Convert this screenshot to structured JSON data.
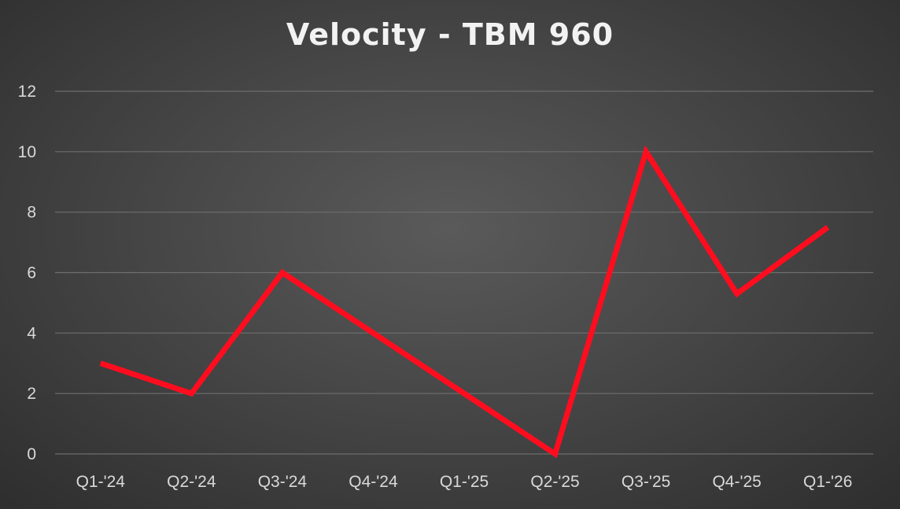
{
  "chart_data": {
    "type": "line",
    "title": "Velocity - TBM 960",
    "xlabel": "",
    "ylabel": "",
    "categories": [
      "Q1-'24",
      "Q2-'24",
      "Q3-'24",
      "Q4-'24",
      "Q1-'25",
      "Q2-'25",
      "Q3-'25",
      "Q4-'25",
      "Q1-'26"
    ],
    "series": [
      {
        "values": [
          3,
          2,
          6,
          4,
          2,
          0,
          10,
          5.3,
          7.5
        ],
        "color": "#ff0d1f"
      }
    ],
    "ylim": [
      0,
      12
    ],
    "yticks": [
      0,
      2,
      4,
      6,
      8,
      10,
      12
    ],
    "grid": true,
    "legend": "none"
  }
}
